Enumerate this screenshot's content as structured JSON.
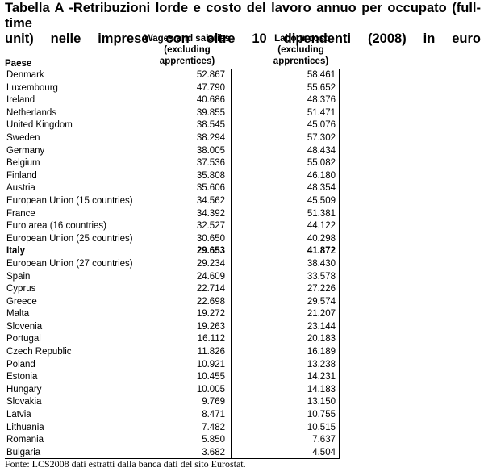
{
  "title": {
    "line1": "Tabella A -Retribuzioni lorde e costo del lavoro annuo per occupato (full-time",
    "line2": "unit) nelle imprese con oltre 10 dipendenti (2008) in euro"
  },
  "table": {
    "headers": {
      "country": "Paese",
      "wages": [
        "Wages and salaries",
        "(excluding",
        "apprentices)"
      ],
      "labour": [
        "Labour cost",
        "(excluding",
        "apprentices)"
      ]
    },
    "rows": [
      {
        "country": "Denmark",
        "wages": "52.867",
        "labour": "58.461"
      },
      {
        "country": "Luxembourg",
        "wages": "47.790",
        "labour": "55.652"
      },
      {
        "country": "Ireland",
        "wages": "40.686",
        "labour": "48.376"
      },
      {
        "country": "Netherlands",
        "wages": "39.855",
        "labour": "51.471"
      },
      {
        "country": "United Kingdom",
        "wages": "38.545",
        "labour": "45.076"
      },
      {
        "country": "Sweden",
        "wages": "38.294",
        "labour": "57.302"
      },
      {
        "country": "Germany",
        "wages": "38.005",
        "labour": "48.434"
      },
      {
        "country": "Belgium",
        "wages": "37.536",
        "labour": "55.082"
      },
      {
        "country": "Finland",
        "wages": "35.808",
        "labour": "46.180"
      },
      {
        "country": "Austria",
        "wages": "35.606",
        "labour": "48.354"
      },
      {
        "country": "European Union (15 countries)",
        "wages": "34.562",
        "labour": "45.509"
      },
      {
        "country": "France",
        "wages": "34.392",
        "labour": "51.381"
      },
      {
        "country": "Euro area (16 countries)",
        "wages": "32.527",
        "labour": "44.122"
      },
      {
        "country": "European Union (25 countries)",
        "wages": "30.650",
        "labour": "40.298"
      },
      {
        "country": "Italy",
        "wages": "29.653",
        "labour": "41.872",
        "bold": true
      },
      {
        "country": "European Union (27 countries)",
        "wages": "29.234",
        "labour": "38.430"
      },
      {
        "country": "Spain",
        "wages": "24.609",
        "labour": "33.578"
      },
      {
        "country": "Cyprus",
        "wages": "22.714",
        "labour": "27.226"
      },
      {
        "country": "Greece",
        "wages": "22.698",
        "labour": "29.574"
      },
      {
        "country": "Malta",
        "wages": "19.272",
        "labour": "21.207"
      },
      {
        "country": "Slovenia",
        "wages": "19.263",
        "labour": "23.144"
      },
      {
        "country": "Portugal",
        "wages": "16.112",
        "labour": "20.183"
      },
      {
        "country": "Czech Republic",
        "wages": "11.826",
        "labour": "16.189"
      },
      {
        "country": "Poland",
        "wages": "10.921",
        "labour": "13.238"
      },
      {
        "country": "Estonia",
        "wages": "10.455",
        "labour": "14.231"
      },
      {
        "country": "Hungary",
        "wages": "10.005",
        "labour": "14.183"
      },
      {
        "country": "Slovakia",
        "wages": "9.769",
        "labour": "13.150"
      },
      {
        "country": "Latvia",
        "wages": "8.471",
        "labour": "10.755"
      },
      {
        "country": "Lithuania",
        "wages": "7.482",
        "labour": "10.515"
      },
      {
        "country": "Romania",
        "wages": "5.850",
        "labour": "7.637"
      },
      {
        "country": "Bulgaria",
        "wages": "3.682",
        "labour": "4.504"
      }
    ]
  },
  "source": "Fonte: LCS2008 dati estratti dalla banca dati del sito Eurostat."
}
